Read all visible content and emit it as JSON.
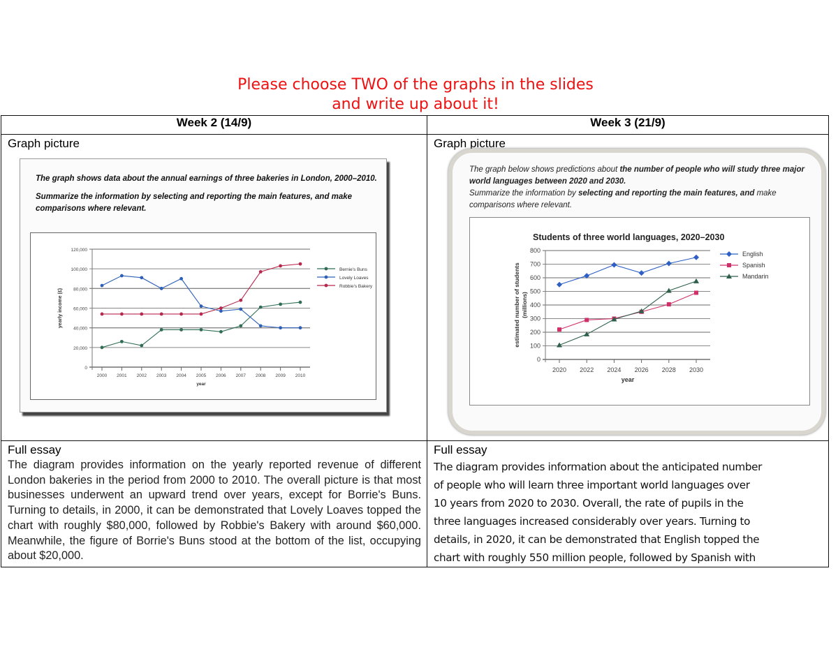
{
  "heading": {
    "line1": "Please choose TWO of the graphs in the slides",
    "line2": "and write up about it!",
    "color": "#ee1111"
  },
  "columns": [
    {
      "week_label": "Week 2 (14/9)",
      "graph_label": "Graph picture",
      "slide_prompt": {
        "line1": "The graph shows data about the annual earnings of three bakeries in London, 2000–2010.",
        "line2": "Summarize the information by selecting and reporting the main features, and make comparisons where relevant."
      },
      "essay_label": "Full essay",
      "essay_text": "The diagram provides information on the yearly reported revenue of different London bakeries in the period from 2000 to 2010. The overall picture is that most businesses underwent an upward trend over years, except for Borrie's Buns. Turning to details, in 2000, it can be demonstrated that Lovely Loaves topped the chart with roughly $80,000, followed by Robbie's Bakery with around $60,000. Meanwhile, the figure of Borrie's Buns stood at the bottom of the list, occupying about $20,000."
    },
    {
      "week_label": "Week 3 (21/9)",
      "graph_label": "Graph picture",
      "slide_prompt": {
        "line1a": "The graph below shows predictions about ",
        "line1b": "the number of people who will study three major world languages between 2020 and 2030.",
        "line2a": "Summarize the information by ",
        "line2b": "selecting and reporting the main features, and",
        "line2c": " make comparisons where relevant."
      },
      "essay_label": "Full essay",
      "essay_lines": [
        "The diagram provides information about the anticipated number",
        "of people who will learn three important world languages over",
        "10 years from 2020 to 2030. Overall, the rate of pupils in the",
        "three languages increased considerably over years. Turning to",
        "details, in 2020, it can be demonstrated that English topped the",
        "chart with roughly 550 million people, followed by Spanish with"
      ]
    }
  ],
  "chart_data": [
    {
      "type": "line",
      "title": "",
      "xlabel": "year",
      "ylabel": "yearly income (£)",
      "x": [
        2000,
        2001,
        2002,
        2003,
        2004,
        2005,
        2006,
        2007,
        2008,
        2009,
        2010
      ],
      "yticks": [
        "0",
        "20,000",
        "40,000",
        "60,000",
        "80,000",
        "100,000",
        "120,000"
      ],
      "ylim": [
        0,
        120000
      ],
      "grid": true,
      "legend_position": "right",
      "series": [
        {
          "name": "Bernie's Buns",
          "color": "#2f6e55",
          "values": [
            20000,
            26000,
            22000,
            38000,
            38000,
            38000,
            36000,
            42000,
            61000,
            64000,
            66000
          ]
        },
        {
          "name": "Lovely Loaves",
          "color": "#2d5fb8",
          "values": [
            83000,
            93000,
            91000,
            80000,
            90000,
            62000,
            57000,
            59000,
            42000,
            40000,
            40000
          ]
        },
        {
          "name": "Robbie's Bakery",
          "color": "#b8284e",
          "values": [
            54000,
            54000,
            54000,
            54000,
            54000,
            54000,
            60000,
            68000,
            97000,
            103000,
            105000
          ]
        }
      ]
    },
    {
      "type": "line",
      "title": "Students of three world languages, 2020–2030",
      "xlabel": "year",
      "ylabel": "estimated number of students (millions)",
      "x": [
        2020,
        2022,
        2024,
        2026,
        2028,
        2030
      ],
      "yticks": [
        "0",
        "100",
        "200",
        "300",
        "400",
        "500",
        "600",
        "700",
        "800"
      ],
      "ylim": [
        0,
        800
      ],
      "grid": true,
      "legend_position": "right",
      "series": [
        {
          "name": "English",
          "color": "#2d5fc4",
          "marker": "diamond",
          "values": [
            550,
            615,
            695,
            635,
            705,
            750
          ]
        },
        {
          "name": "Spanish",
          "color": "#d0306a",
          "marker": "square",
          "values": [
            220,
            290,
            300,
            350,
            405,
            490
          ]
        },
        {
          "name": "Mandarin",
          "color": "#2e5f4a",
          "marker": "triangle",
          "values": [
            105,
            185,
            295,
            355,
            505,
            575
          ]
        }
      ]
    }
  ]
}
